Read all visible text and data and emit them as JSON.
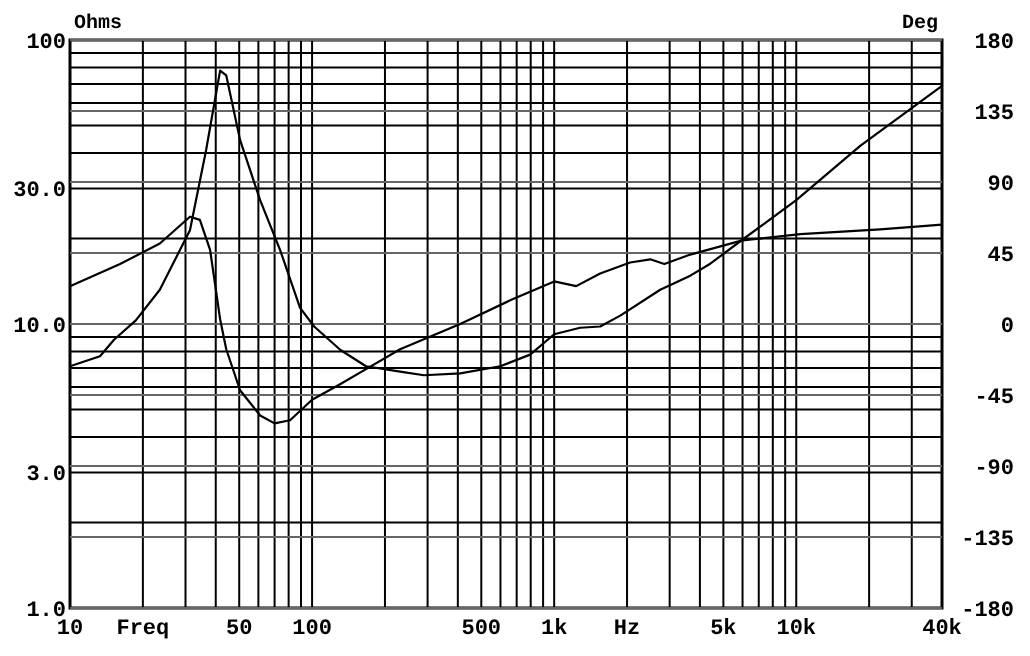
{
  "chart_data": {
    "type": "line",
    "ylabel": "Ohms",
    "y2label": "Deg",
    "log": "xy",
    "grid": true,
    "line_style": "solid",
    "xlim": [
      10,
      40000
    ],
    "ylim": [
      1,
      100
    ],
    "y2lim": [
      -180,
      180
    ],
    "xticks": [
      10,
      {
        "value": 20,
        "label": "Freq"
      },
      {
        "value": 30,
        "label": null
      },
      {
        "value": 40,
        "label": null
      },
      50,
      {
        "value": 60,
        "label": null
      },
      {
        "value": 70,
        "label": null
      },
      {
        "value": 80,
        "label": null
      },
      {
        "value": 90,
        "label": null
      },
      100,
      {
        "value": 200,
        "label": null
      },
      {
        "value": 300,
        "label": null
      },
      {
        "value": 400,
        "label": null
      },
      500,
      {
        "value": 600,
        "label": null
      },
      {
        "value": 700,
        "label": null
      },
      {
        "value": 800,
        "label": null
      },
      {
        "value": 900,
        "label": null
      },
      {
        "value": 1000,
        "label": "1k"
      },
      {
        "value": 2000,
        "label": "Hz"
      },
      {
        "value": 3000,
        "label": null
      },
      {
        "value": 4000,
        "label": null
      },
      {
        "value": 5000,
        "label": "5k"
      },
      {
        "value": 6000,
        "label": null
      },
      {
        "value": 7000,
        "label": null
      },
      {
        "value": 8000,
        "label": null
      },
      {
        "value": 9000,
        "label": null
      },
      {
        "value": 10000,
        "label": "10k"
      },
      {
        "value": 20000,
        "label": null
      },
      {
        "value": 30000,
        "label": null
      },
      {
        "value": 40000,
        "label": "40k"
      }
    ],
    "yticks": [
      {
        "value": 1,
        "label": "1.0"
      },
      {
        "value": 2,
        "label": null
      },
      {
        "value": 3,
        "label": "3.0"
      },
      {
        "value": 4,
        "label": null
      },
      {
        "value": 5,
        "label": null
      },
      {
        "value": 6,
        "label": null
      },
      {
        "value": 7,
        "label": null
      },
      {
        "value": 8,
        "label": null
      },
      {
        "value": 9,
        "label": null
      },
      {
        "value": 10,
        "label": "10.0"
      },
      {
        "value": 20,
        "label": null
      },
      {
        "value": 30,
        "label": "30.0"
      },
      {
        "value": 40,
        "label": null
      },
      {
        "value": 50,
        "label": null
      },
      {
        "value": 60,
        "label": null
      },
      {
        "value": 70,
        "label": null
      },
      {
        "value": 80,
        "label": null
      },
      {
        "value": 90,
        "label": null
      },
      100
    ],
    "y2ticks": [
      -180,
      -135,
      -90,
      -45,
      0,
      45,
      90,
      135,
      180
    ],
    "series": [
      {
        "color": "#000000",
        "axis": "y",
        "x": [
          10,
          13.3,
          15.2,
          18.7,
          23.5,
          31.3,
          36.5,
          41.7,
          44.2,
          50.4,
          61,
          73.8,
          89.2,
          102,
          131,
          167,
          231,
          290,
          409,
          599,
          796,
          1000,
          1280,
          1549,
          1875,
          2742,
          3650,
          4414,
          5986,
          10000,
          18370,
          40000
        ],
        "values": [
          7.1,
          7.7,
          8.8,
          10.3,
          13.2,
          21.4,
          41,
          78,
          75,
          44.5,
          27.3,
          18.2,
          11.4,
          9.8,
          8.1,
          7.1,
          6.8,
          6.6,
          6.7,
          7.1,
          7.8,
          9.2,
          9.7,
          9.8,
          10.7,
          13.2,
          14.8,
          16.3,
          19.8,
          27.3,
          42.4,
          69
        ]
      },
      {
        "color": "#000000",
        "axis": "y2",
        "x": [
          10,
          16.1,
          23.5,
          31.3,
          34.4,
          37.9,
          41.7,
          44.2,
          50.4,
          61,
          70,
          81.1,
          100,
          131,
          174,
          231,
          409,
          658,
          1000,
          1233,
          1549,
          2060,
          2494,
          2851,
          3650,
          5986,
          10400,
          22230,
          40000
        ],
        "values": [
          24,
          38,
          51,
          68,
          66,
          47,
          3,
          -16,
          -42,
          -58,
          -63,
          -61,
          -48,
          -38,
          -27,
          -16,
          0,
          15,
          27,
          24,
          32,
          39,
          41,
          38,
          44,
          53,
          57,
          60,
          63
        ]
      }
    ]
  }
}
